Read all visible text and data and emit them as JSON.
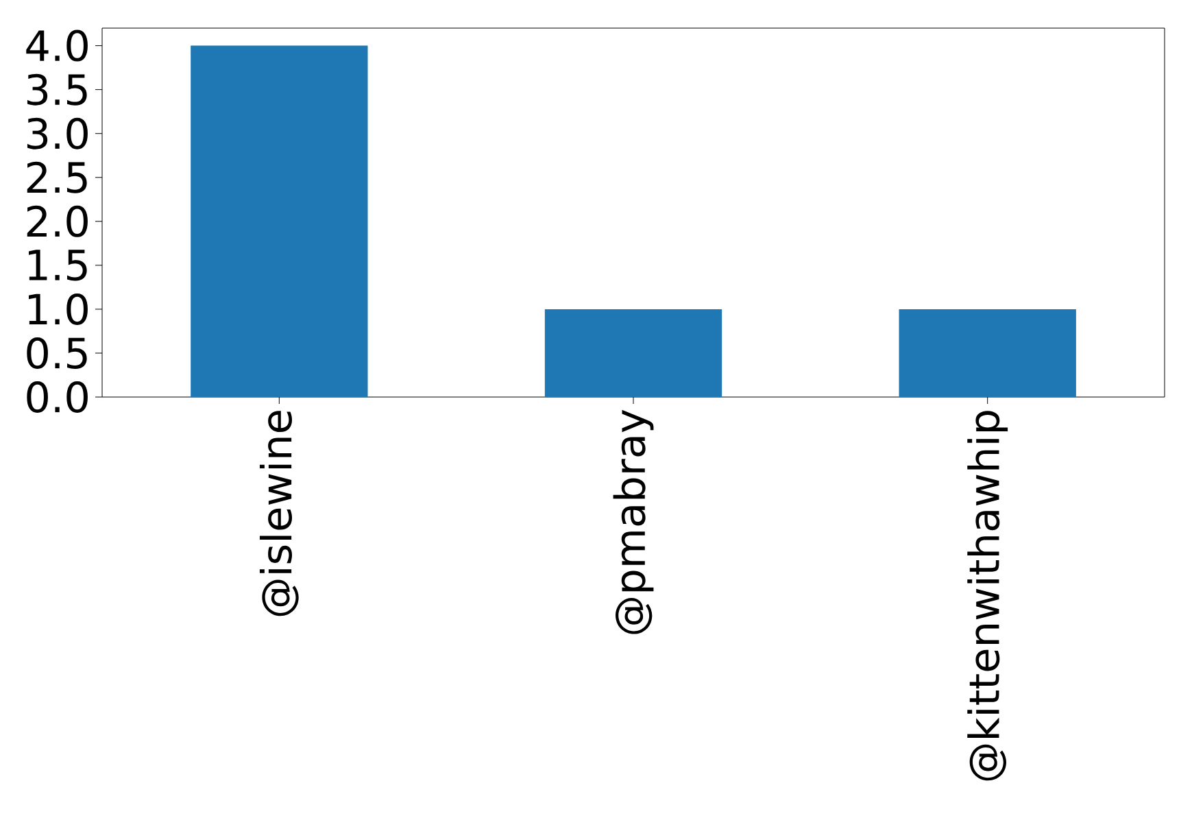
{
  "chart_data": {
    "type": "bar",
    "categories": [
      "@islewine",
      "@pmabray",
      "@kittenwithawhip"
    ],
    "values": [
      4,
      1,
      1
    ],
    "color": "#1f77b4",
    "ylim": [
      0,
      4.2
    ],
    "yticks": [
      {
        "value": 0,
        "label": "0.0"
      },
      {
        "value": 0.5,
        "label": "0.5"
      },
      {
        "value": 1,
        "label": "1.0"
      },
      {
        "value": 1.5,
        "label": "1.5"
      },
      {
        "value": 2,
        "label": "2.0"
      },
      {
        "value": 2.5,
        "label": "2.5"
      },
      {
        "value": 3,
        "label": "3.0"
      },
      {
        "value": 3.5,
        "label": "3.5"
      },
      {
        "value": 4,
        "label": "4.0"
      }
    ]
  }
}
